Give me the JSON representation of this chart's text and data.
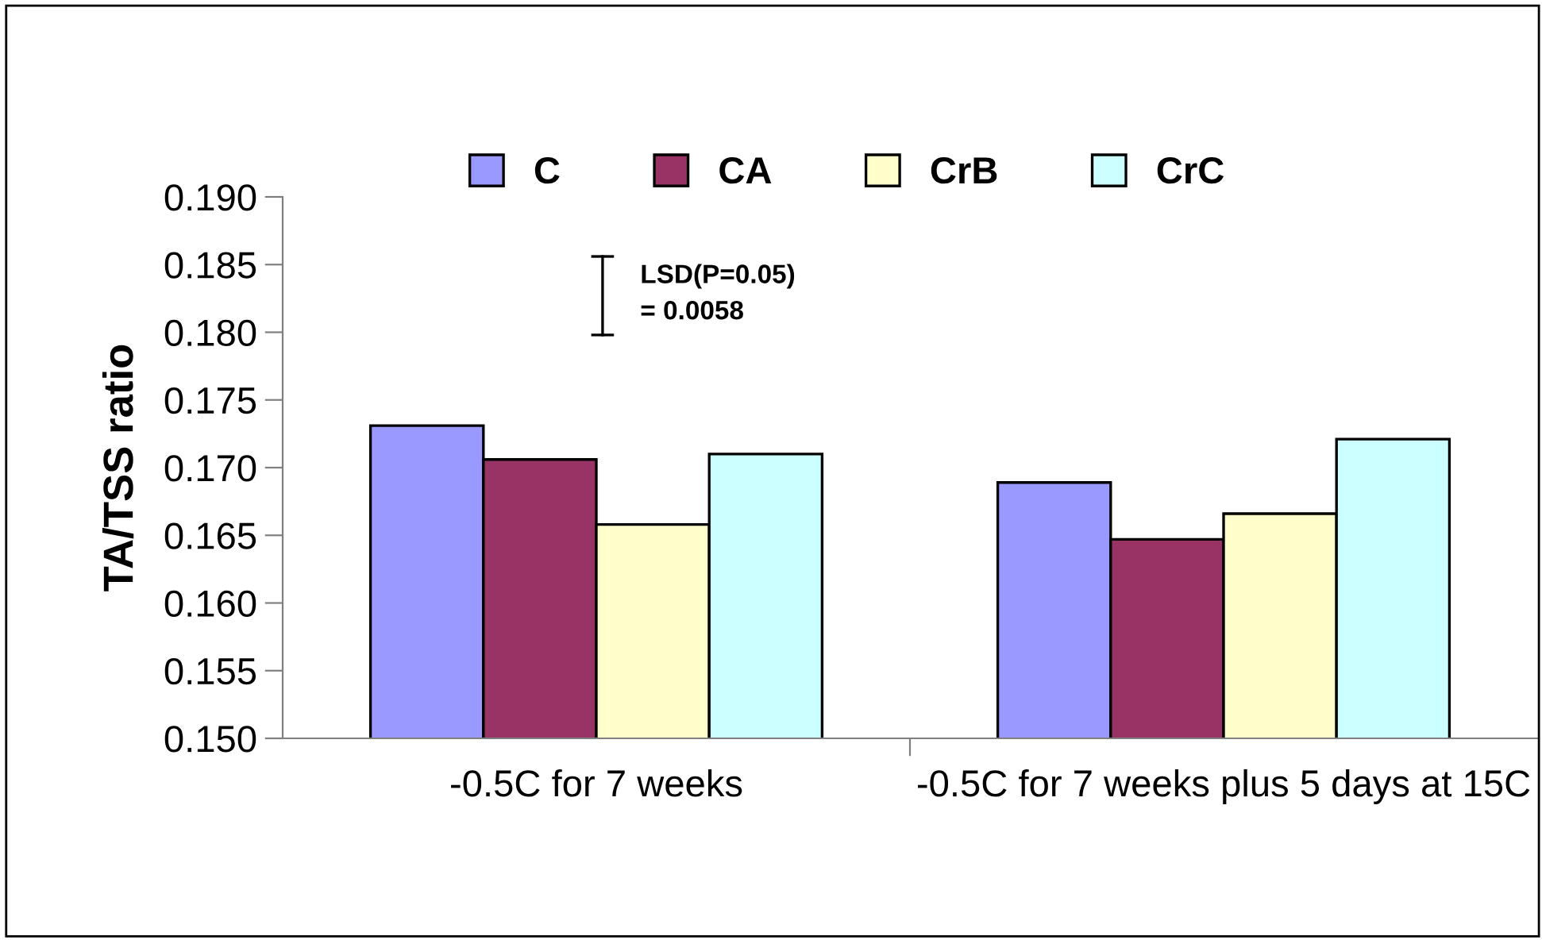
{
  "chart_data": {
    "type": "bar",
    "ylabel": "TA/TSS ratio",
    "categories": [
      "-0.5C for 7 weeks",
      "-0.5C for 7 weeks plus 5 days at 15C"
    ],
    "series": [
      {
        "name": "C",
        "color": "#9999ff",
        "values": [
          0.1731,
          0.1689
        ]
      },
      {
        "name": "CA",
        "color": "#993366",
        "values": [
          0.1706,
          0.1647
        ]
      },
      {
        "name": "CrB",
        "color": "#ffffcc",
        "values": [
          0.1658,
          0.1666
        ]
      },
      {
        "name": "CrC",
        "color": "#ccffff",
        "values": [
          0.171,
          0.1721
        ]
      }
    ],
    "ylim": [
      0.15,
      0.19
    ],
    "yticks": [
      {
        "value": 0.15,
        "label": "0.150"
      },
      {
        "value": 0.155,
        "label": "0.155"
      },
      {
        "value": 0.16,
        "label": "0.160"
      },
      {
        "value": 0.165,
        "label": "0.165"
      },
      {
        "value": 0.17,
        "label": "0.170"
      },
      {
        "value": 0.175,
        "label": "0.175"
      },
      {
        "value": 0.18,
        "label": "0.180"
      },
      {
        "value": 0.185,
        "label": "0.185"
      },
      {
        "value": 0.19,
        "label": "0.190"
      }
    ],
    "annotations": [
      "LSD(P=0.05)\n= 0.0058"
    ],
    "legend": "top",
    "grid": false
  }
}
